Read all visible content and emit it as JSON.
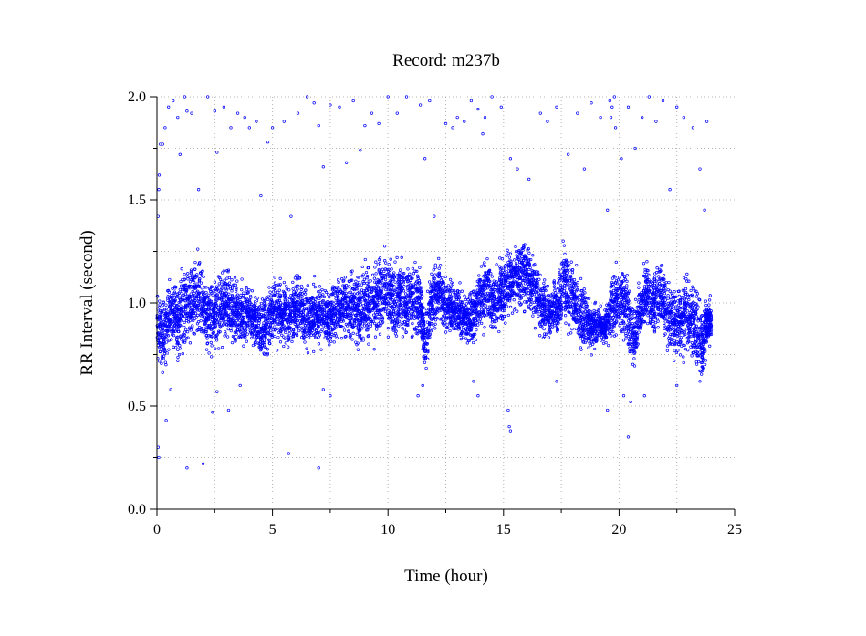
{
  "chart_data": {
    "type": "scatter",
    "title": "Record:  m237b",
    "xlabel": "Time (hour)",
    "ylabel": "RR Interval (second)",
    "xlim": [
      0,
      25
    ],
    "ylim": [
      0.0,
      2.0
    ],
    "xticks": [
      0,
      5,
      10,
      15,
      20,
      25
    ],
    "yticks": [
      0.0,
      0.5,
      1.0,
      1.5,
      2.0
    ],
    "xtick_labels": [
      "0",
      "5",
      "10",
      "15",
      "20",
      "25"
    ],
    "ytick_labels": [
      "0.0",
      "0.5",
      "1.0",
      "1.5",
      "2.0"
    ],
    "grid": true,
    "marker_color": "#0000ff",
    "series": [
      {
        "band": [
          [
            0.0,
            0.88,
            0.1
          ],
          [
            0.3,
            0.85,
            0.12
          ],
          [
            0.6,
            0.95,
            0.12
          ],
          [
            0.9,
            0.92,
            0.1
          ],
          [
            1.2,
            1.0,
            0.12
          ],
          [
            1.5,
            1.0,
            0.11
          ],
          [
            1.8,
            1.05,
            0.12
          ],
          [
            2.1,
            0.95,
            0.1
          ],
          [
            2.4,
            0.92,
            0.1
          ],
          [
            2.7,
            0.98,
            0.11
          ],
          [
            3.0,
            1.0,
            0.11
          ],
          [
            3.3,
            0.95,
            0.1
          ],
          [
            3.6,
            0.96,
            0.1
          ],
          [
            3.9,
            0.95,
            0.09
          ],
          [
            4.2,
            0.93,
            0.08
          ],
          [
            4.5,
            0.85,
            0.1
          ],
          [
            4.8,
            0.92,
            0.09
          ],
          [
            5.1,
            0.97,
            0.1
          ],
          [
            5.4,
            0.95,
            0.09
          ],
          [
            5.7,
            0.93,
            0.09
          ],
          [
            6.0,
            0.98,
            0.1
          ],
          [
            6.3,
            0.96,
            0.1
          ],
          [
            6.6,
            0.93,
            0.1
          ],
          [
            6.9,
            0.95,
            0.1
          ],
          [
            7.2,
            0.95,
            0.09
          ],
          [
            7.5,
            0.92,
            0.08
          ],
          [
            7.8,
            0.98,
            0.1
          ],
          [
            8.1,
            1.0,
            0.1
          ],
          [
            8.4,
            0.99,
            0.1
          ],
          [
            8.7,
            0.97,
            0.11
          ],
          [
            9.0,
            1.0,
            0.12
          ],
          [
            9.3,
            0.98,
            0.11
          ],
          [
            9.6,
            1.02,
            0.12
          ],
          [
            9.9,
            1.05,
            0.12
          ],
          [
            10.2,
            1.03,
            0.12
          ],
          [
            10.5,
            1.02,
            0.11
          ],
          [
            10.8,
            1.0,
            0.11
          ],
          [
            11.1,
            1.03,
            0.11
          ],
          [
            11.4,
            1.0,
            0.1
          ],
          [
            11.6,
            0.8,
            0.1
          ],
          [
            11.9,
            1.02,
            0.1
          ],
          [
            12.2,
            1.05,
            0.1
          ],
          [
            12.5,
            1.0,
            0.09
          ],
          [
            12.8,
            0.98,
            0.08
          ],
          [
            13.1,
            0.95,
            0.08
          ],
          [
            13.4,
            0.92,
            0.07
          ],
          [
            13.7,
            0.93,
            0.08
          ],
          [
            14.0,
            1.02,
            0.1
          ],
          [
            14.3,
            1.05,
            0.1
          ],
          [
            14.6,
            1.0,
            0.09
          ],
          [
            14.9,
            1.05,
            0.1
          ],
          [
            15.2,
            1.1,
            0.1
          ],
          [
            15.5,
            1.12,
            0.11
          ],
          [
            15.8,
            1.15,
            0.11
          ],
          [
            16.1,
            1.12,
            0.1
          ],
          [
            16.4,
            1.05,
            0.1
          ],
          [
            16.7,
            0.98,
            0.09
          ],
          [
            17.0,
            0.95,
            0.08
          ],
          [
            17.3,
            0.98,
            0.09
          ],
          [
            17.6,
            1.1,
            0.12
          ],
          [
            17.9,
            1.05,
            0.11
          ],
          [
            18.2,
            0.95,
            0.11
          ],
          [
            18.5,
            0.92,
            0.1
          ],
          [
            18.8,
            0.88,
            0.07
          ],
          [
            19.1,
            0.9,
            0.06
          ],
          [
            19.4,
            0.88,
            0.05
          ],
          [
            19.7,
            0.98,
            0.1
          ],
          [
            20.0,
            1.02,
            0.12
          ],
          [
            20.3,
            1.0,
            0.12
          ],
          [
            20.6,
            0.82,
            0.1
          ],
          [
            20.9,
            0.95,
            0.09
          ],
          [
            21.2,
            1.05,
            0.1
          ],
          [
            21.5,
            1.0,
            0.1
          ],
          [
            21.8,
            1.03,
            0.11
          ],
          [
            22.1,
            0.95,
            0.1
          ],
          [
            22.4,
            0.9,
            0.1
          ],
          [
            22.7,
            0.92,
            0.11
          ],
          [
            23.0,
            0.95,
            0.11
          ],
          [
            23.3,
            0.88,
            0.12
          ],
          [
            23.6,
            0.8,
            0.12
          ],
          [
            23.8,
            0.9,
            0.08
          ],
          [
            24.0,
            0.92,
            0.06
          ]
        ],
        "points": [
          [
            0.05,
            1.42
          ],
          [
            0.08,
            1.55
          ],
          [
            0.1,
            1.62
          ],
          [
            0.15,
            1.77
          ],
          [
            0.25,
            1.77
          ],
          [
            0.35,
            1.85
          ],
          [
            0.5,
            1.95
          ],
          [
            0.7,
            1.98
          ],
          [
            0.9,
            1.9
          ],
          [
            1.0,
            1.72
          ],
          [
            1.2,
            2.0
          ],
          [
            1.3,
            1.93
          ],
          [
            1.5,
            1.92
          ],
          [
            1.8,
            1.55
          ],
          [
            2.2,
            2.0
          ],
          [
            2.5,
            1.93
          ],
          [
            2.6,
            1.73
          ],
          [
            2.9,
            1.95
          ],
          [
            3.2,
            1.85
          ],
          [
            3.5,
            1.92
          ],
          [
            3.8,
            1.9
          ],
          [
            4.0,
            1.85
          ],
          [
            4.3,
            1.88
          ],
          [
            4.5,
            1.52
          ],
          [
            4.8,
            1.78
          ],
          [
            5.0,
            1.85
          ],
          [
            5.5,
            1.88
          ],
          [
            5.8,
            1.42
          ],
          [
            6.1,
            1.92
          ],
          [
            6.5,
            2.0
          ],
          [
            6.8,
            1.97
          ],
          [
            7.0,
            1.86
          ],
          [
            7.2,
            1.66
          ],
          [
            7.5,
            1.96
          ],
          [
            7.9,
            1.95
          ],
          [
            8.2,
            1.68
          ],
          [
            8.5,
            1.98
          ],
          [
            8.8,
            1.74
          ],
          [
            9.0,
            1.86
          ],
          [
            9.3,
            1.92
          ],
          [
            9.6,
            1.87
          ],
          [
            10.0,
            2.0
          ],
          [
            10.4,
            1.92
          ],
          [
            10.8,
            2.0
          ],
          [
            11.4,
            1.96
          ],
          [
            11.6,
            1.7
          ],
          [
            11.8,
            1.98
          ],
          [
            12.0,
            1.42
          ],
          [
            12.5,
            1.87
          ],
          [
            12.8,
            1.85
          ],
          [
            13.0,
            1.9
          ],
          [
            13.3,
            1.88
          ],
          [
            13.6,
            1.98
          ],
          [
            13.9,
            1.94
          ],
          [
            14.1,
            1.82
          ],
          [
            14.2,
            1.9
          ],
          [
            14.5,
            2.0
          ],
          [
            14.9,
            1.95
          ],
          [
            15.3,
            1.7
          ],
          [
            15.6,
            1.65
          ],
          [
            16.1,
            1.6
          ],
          [
            16.6,
            1.92
          ],
          [
            16.9,
            1.88
          ],
          [
            17.3,
            1.95
          ],
          [
            17.8,
            1.72
          ],
          [
            18.2,
            1.92
          ],
          [
            18.5,
            1.65
          ],
          [
            18.8,
            1.97
          ],
          [
            19.2,
            1.9
          ],
          [
            19.5,
            1.45
          ],
          [
            19.6,
            1.98
          ],
          [
            19.65,
            1.9
          ],
          [
            19.7,
            1.95
          ],
          [
            19.8,
            2.0
          ],
          [
            19.85,
            1.85
          ],
          [
            20.1,
            1.7
          ],
          [
            20.4,
            1.95
          ],
          [
            20.7,
            1.75
          ],
          [
            21.0,
            1.9
          ],
          [
            21.3,
            2.0
          ],
          [
            21.6,
            1.88
          ],
          [
            21.9,
            1.98
          ],
          [
            22.2,
            1.55
          ],
          [
            22.5,
            1.95
          ],
          [
            22.8,
            1.9
          ],
          [
            23.2,
            1.85
          ],
          [
            23.5,
            1.65
          ],
          [
            23.7,
            1.45
          ],
          [
            23.8,
            1.88
          ],
          [
            0.05,
            0.3
          ],
          [
            0.08,
            0.25
          ],
          [
            0.4,
            0.43
          ],
          [
            0.6,
            0.58
          ],
          [
            0.9,
            0.72
          ],
          [
            1.3,
            0.2
          ],
          [
            2.0,
            0.22
          ],
          [
            2.4,
            0.47
          ],
          [
            2.6,
            0.57
          ],
          [
            3.1,
            0.48
          ],
          [
            3.6,
            0.6
          ],
          [
            5.7,
            0.27
          ],
          [
            7.0,
            0.2
          ],
          [
            7.2,
            0.58
          ],
          [
            7.5,
            0.55
          ],
          [
            11.3,
            0.55
          ],
          [
            11.5,
            0.6
          ],
          [
            13.7,
            0.62
          ],
          [
            13.9,
            0.55
          ],
          [
            15.2,
            0.48
          ],
          [
            15.25,
            0.4
          ],
          [
            15.3,
            0.38
          ],
          [
            17.3,
            0.62
          ],
          [
            19.5,
            0.48
          ],
          [
            20.2,
            0.55
          ],
          [
            20.4,
            0.35
          ],
          [
            20.5,
            0.52
          ],
          [
            21.1,
            0.55
          ],
          [
            22.5,
            0.6
          ],
          [
            23.5,
            0.62
          ]
        ]
      }
    ]
  }
}
